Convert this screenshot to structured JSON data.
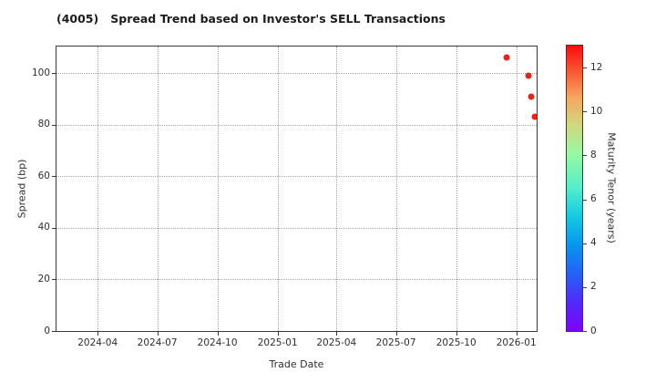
{
  "chart_data": {
    "type": "scatter",
    "title": "(4005)   Spread Trend based on Investor's SELL Transactions",
    "xlabel": "Trade Date",
    "ylabel": "Spread (bp)",
    "x_axis": {
      "type": "date",
      "min": "2024-01-29",
      "max": "2026-02-01",
      "ticks": [
        {
          "value": "2024-04-01",
          "label": "2024-04"
        },
        {
          "value": "2024-07-01",
          "label": "2024-07"
        },
        {
          "value": "2024-10-01",
          "label": "2024-10"
        },
        {
          "value": "2025-01-01",
          "label": "2025-01"
        },
        {
          "value": "2025-04-01",
          "label": "2025-04"
        },
        {
          "value": "2025-07-01",
          "label": "2025-07"
        },
        {
          "value": "2025-10-01",
          "label": "2025-10"
        },
        {
          "value": "2026-01-01",
          "label": "2026-01"
        }
      ]
    },
    "y_axis": {
      "min": 0,
      "max": 110.3,
      "ticks": [
        0,
        20,
        40,
        60,
        80,
        100
      ]
    },
    "grid": {
      "show": true,
      "style": "dotted",
      "color": "#a3a3a3"
    },
    "points": [
      {
        "date": "2025-12-17",
        "spread": 106,
        "maturity_tenor": 12.9,
        "color": "#ee2119"
      },
      {
        "date": "2026-01-19",
        "spread": 99,
        "maturity_tenor": 12.9,
        "color": "#ee2119"
      },
      {
        "date": "2026-01-24",
        "spread": 91,
        "maturity_tenor": 12.9,
        "color": "#ee2119"
      },
      {
        "date": "2026-01-29",
        "spread": 83,
        "maturity_tenor": 12.9,
        "color": "#ee2119"
      }
    ],
    "colorbar": {
      "label": "Maturity Tenor (years)",
      "min": 0,
      "max": 13,
      "ticks": [
        0,
        2,
        4,
        6,
        8,
        10,
        12
      ],
      "colormap": "rainbow",
      "gradient_stops": [
        [
          "0%",
          "#7d03fc"
        ],
        [
          "10%",
          "#5229f8"
        ],
        [
          "20%",
          "#2661f6"
        ],
        [
          "30%",
          "#0895ef"
        ],
        [
          "40%",
          "#15c9e2"
        ],
        [
          "50%",
          "#52eecd"
        ],
        [
          "62%",
          "#97f9a3"
        ],
        [
          "72%",
          "#cfd981"
        ],
        [
          "82%",
          "#f7a55f"
        ],
        [
          "91%",
          "#f95733"
        ],
        [
          "100%",
          "#fa0d0c"
        ]
      ]
    },
    "colors": {
      "background": "#ffffff",
      "spine": "#3a3a3a",
      "text": "#2e2e2e",
      "title_text": "#1c1c1c"
    }
  }
}
